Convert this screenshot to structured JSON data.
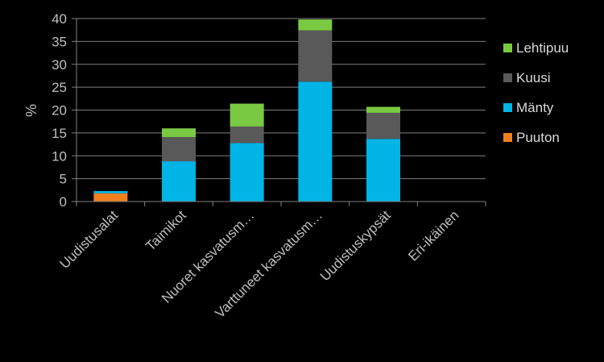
{
  "chart_data": {
    "type": "bar",
    "stacked": true,
    "ylabel": "%",
    "ylim": [
      0,
      40
    ],
    "yticks": [
      0,
      5,
      10,
      15,
      20,
      25,
      30,
      35,
      40
    ],
    "grid": true,
    "legend_position": "right",
    "categories": [
      "Uudistusalat",
      "Taimikot",
      "Nuoret kasvatusm…",
      "Varttuneet kasvatusm…",
      "Uudistuskypsät",
      "Eri-ikäinen"
    ],
    "series": [
      {
        "name": "Puuton",
        "color": "#f07f1e",
        "values": [
          1.8,
          0,
          0,
          0,
          0,
          0
        ]
      },
      {
        "name": "Mänty",
        "color": "#00b4e6",
        "values": [
          0.5,
          8.8,
          12.8,
          26.2,
          13.7,
          0
        ]
      },
      {
        "name": "Kuusi",
        "color": "#595959",
        "values": [
          0,
          5.3,
          3.6,
          11.2,
          5.7,
          0
        ]
      },
      {
        "name": "Lehtipuu",
        "color": "#7ac943",
        "values": [
          0,
          1.9,
          5.0,
          2.4,
          1.3,
          0
        ]
      }
    ],
    "legend_order": [
      "Lehtipuu",
      "Kuusi",
      "Mänty",
      "Puuton"
    ]
  }
}
